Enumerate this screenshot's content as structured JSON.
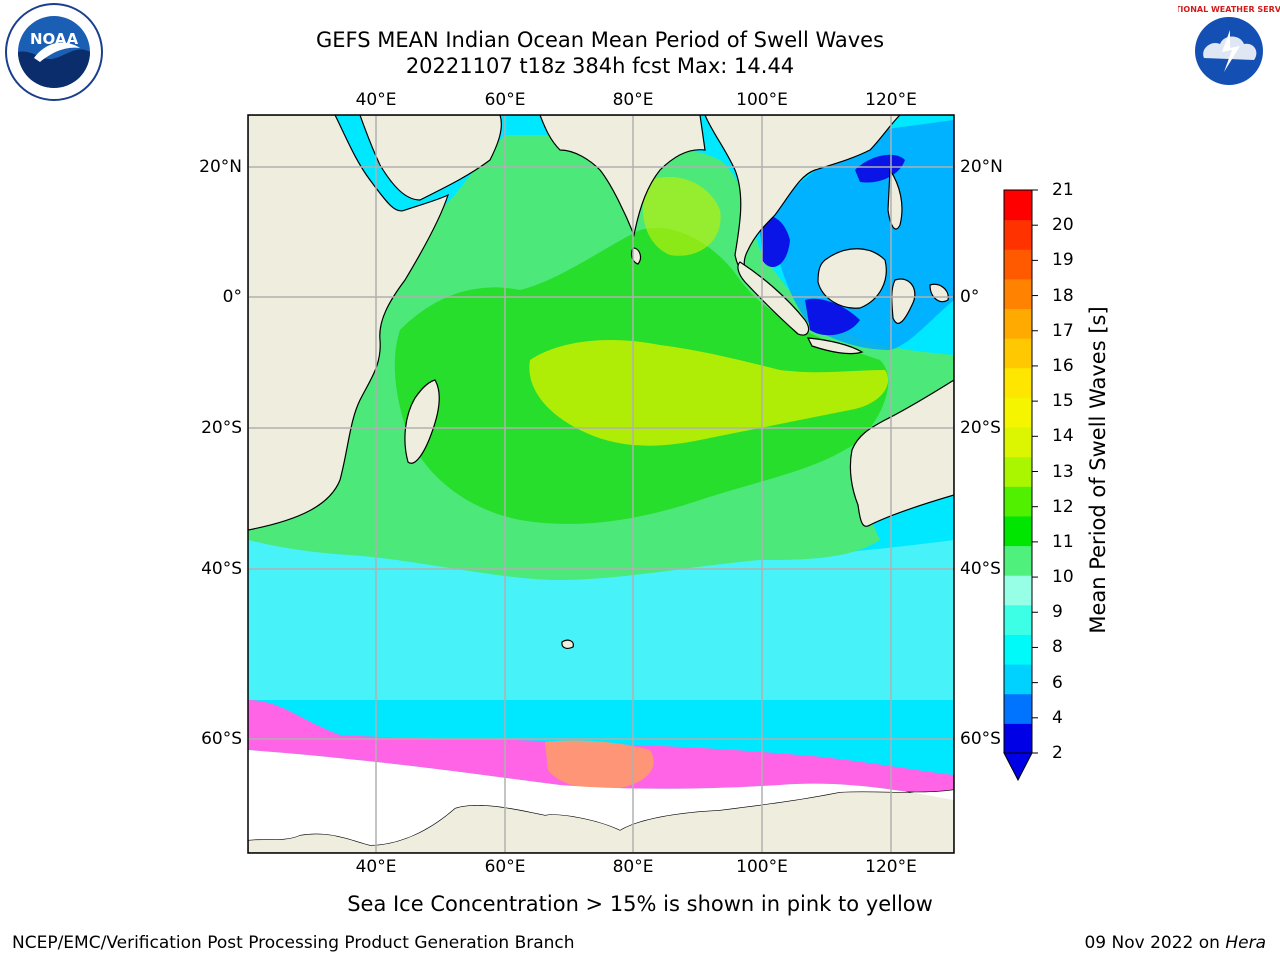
{
  "title": {
    "line1": "GEFS MEAN Indian Ocean Mean Period of Swell Waves",
    "line2": "20221107 t18z 384h fcst   Max: 14.44"
  },
  "logos": {
    "left": {
      "icon": "noaa-logo-icon",
      "text": "NOAA"
    },
    "right": {
      "icon": "national-weather-service-logo-icon",
      "text": "NATIONAL WEATHER SERVICE"
    }
  },
  "map": {
    "lon_ticks": [
      "40°E",
      "60°E",
      "80°E",
      "100°E",
      "120°E"
    ],
    "lat_ticks": [
      "20°N",
      "0°",
      "20°S",
      "40°S",
      "60°S"
    ],
    "lon_range": [
      20,
      130
    ],
    "lat_range": [
      -78,
      27
    ],
    "colors": {
      "land": "#efedde",
      "ice_free_ocean": "#00e8ff",
      "grid": "#b0b0b0",
      "coast": "#000000"
    }
  },
  "colorbar": {
    "title": "Mean Period of Swell Waves [s]",
    "labels": [
      "2",
      "4",
      "6",
      "8",
      "9",
      "10",
      "11",
      "12",
      "13",
      "14",
      "15",
      "16",
      "17",
      "18",
      "19",
      "20",
      "21"
    ],
    "colors": [
      "#0000e6",
      "#0073ff",
      "#00d2ff",
      "#00fafa",
      "#3cffe6",
      "#96ffe6",
      "#50f07c",
      "#00e600",
      "#50f000",
      "#aaf500",
      "#dcf500",
      "#f5f500",
      "#ffe600",
      "#ffc800",
      "#ffaa00",
      "#ff8200",
      "#ff5a00",
      "#ff3200",
      "#ff0000"
    ]
  },
  "note": "Sea Ice Concentration > 15% is shown in pink to yellow",
  "footer": {
    "left": "NCEP/EMC/Verification Post Processing Product Generation Branch",
    "right_date": "09 Nov 2022 on",
    "right_host": "Hera"
  }
}
